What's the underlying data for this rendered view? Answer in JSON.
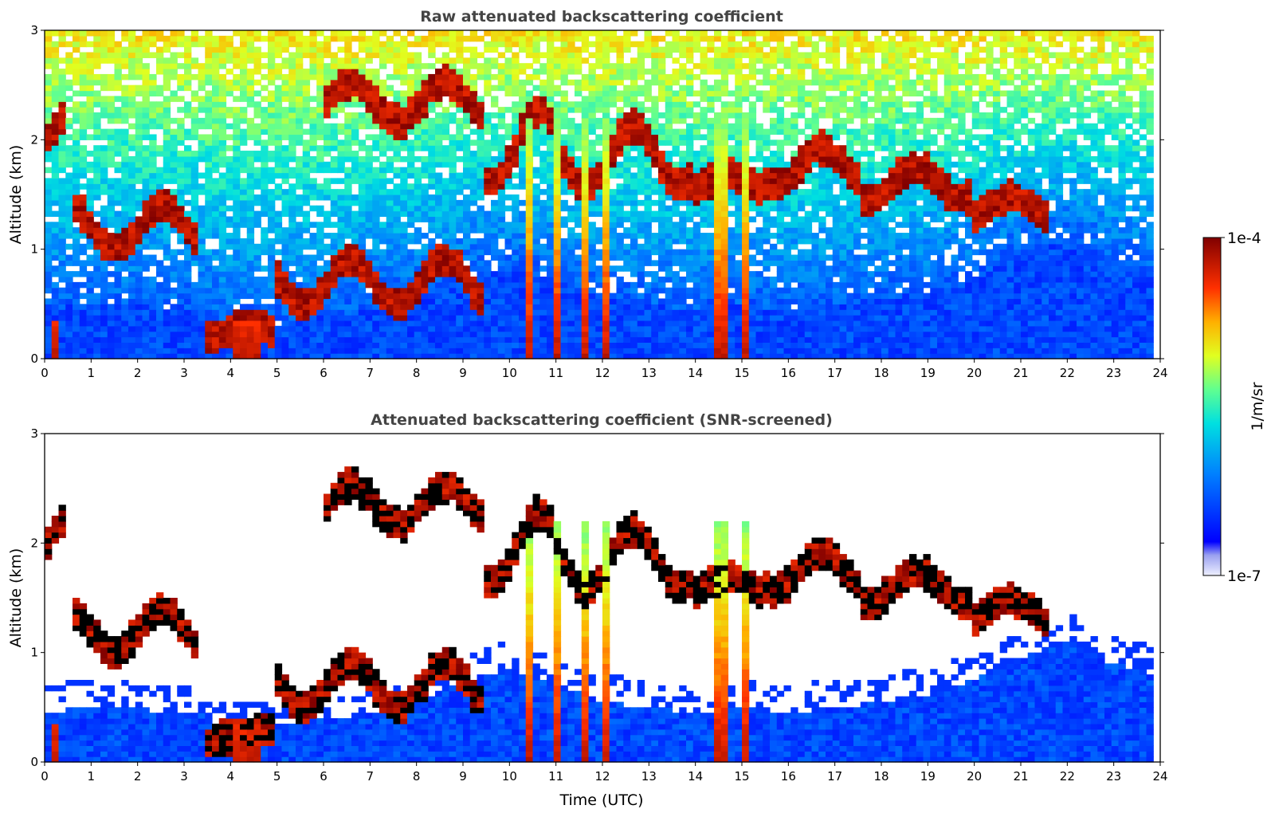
{
  "chart_data": [
    {
      "type": "heatmap",
      "title": "Raw attenuated backscattering coefficient",
      "xlabel": "",
      "ylabel": "Altitude (km)",
      "xlim": [
        0,
        24
      ],
      "ylim": [
        0,
        3
      ],
      "xticks": [
        "0",
        "1",
        "2",
        "3",
        "4",
        "5",
        "6",
        "7",
        "8",
        "9",
        "10",
        "11",
        "12",
        "13",
        "14",
        "15",
        "16",
        "17",
        "18",
        "19",
        "20",
        "21",
        "22",
        "23",
        "24"
      ],
      "yticks": [
        "0",
        "1",
        "2",
        "3"
      ],
      "grid": false,
      "screened": false
    },
    {
      "type": "heatmap",
      "title": "Attenuated backscattering coefficient (SNR-screened)",
      "xlabel": "Time (UTC)",
      "ylabel": "Altitude (km)",
      "xlim": [
        0,
        24
      ],
      "ylim": [
        0,
        3
      ],
      "xticks": [
        "0",
        "1",
        "2",
        "3",
        "4",
        "5",
        "6",
        "7",
        "8",
        "9",
        "10",
        "11",
        "12",
        "13",
        "14",
        "15",
        "16",
        "17",
        "18",
        "19",
        "20",
        "21",
        "22",
        "23",
        "24"
      ],
      "yticks": [
        "0",
        "1",
        "2",
        "3"
      ],
      "grid": false,
      "screened": true
    }
  ],
  "colorbar": {
    "label": "1/m/sr",
    "max_label": "1e-4",
    "min_label": "1e-7",
    "scale": "log",
    "colormap": "jet"
  },
  "features": {
    "boundary_layer": [
      [
        0,
        0.45
      ],
      [
        1,
        0.5
      ],
      [
        2,
        0.48
      ],
      [
        3.3,
        0.45
      ],
      [
        4,
        0.3
      ],
      [
        5,
        0.32
      ],
      [
        6,
        0.38
      ],
      [
        7,
        0.45
      ],
      [
        8,
        0.55
      ],
      [
        9,
        0.75
      ],
      [
        10,
        0.85
      ],
      [
        11,
        0.7
      ],
      [
        12,
        0.55
      ],
      [
        13,
        0.5
      ],
      [
        14,
        0.45
      ],
      [
        15,
        0.5
      ],
      [
        16,
        0.45
      ],
      [
        17,
        0.5
      ],
      [
        18,
        0.55
      ],
      [
        19,
        0.6
      ],
      [
        20,
        0.75
      ],
      [
        21,
        0.95
      ],
      [
        22,
        1.1
      ],
      [
        23,
        0.9
      ],
      [
        24,
        0.8
      ]
    ],
    "cloud_layers": [
      {
        "t0": 0.0,
        "t1": 0.5,
        "h0": 1.4,
        "h1": 2.5
      },
      {
        "t0": 0.6,
        "t1": 3.3,
        "h0": 0.8,
        "h1": 1.6
      },
      {
        "t0": 3.4,
        "t1": 4.9,
        "h0": 0.15,
        "h1": 0.35
      },
      {
        "t0": 4.9,
        "t1": 9.5,
        "h0": 0.3,
        "h1": 1.1
      },
      {
        "t0": 6.0,
        "t1": 9.5,
        "h0": 2.0,
        "h1": 2.7
      },
      {
        "t0": 9.5,
        "t1": 10.9,
        "h0": 1.3,
        "h1": 2.6
      },
      {
        "t0": 11.0,
        "t1": 14.0,
        "h0": 1.3,
        "h1": 2.4
      },
      {
        "t0": 14.0,
        "t1": 15.4,
        "h0": 1.4,
        "h1": 1.8
      },
      {
        "t0": 15.4,
        "t1": 17.5,
        "h0": 1.4,
        "h1": 2.1
      },
      {
        "t0": 17.5,
        "t1": 20.0,
        "h0": 1.3,
        "h1": 1.9
      },
      {
        "t0": 20.0,
        "t1": 21.6,
        "h0": 1.15,
        "h1": 1.6
      }
    ],
    "precip_columns": [
      {
        "t": 0.2,
        "w": 0.25
      },
      {
        "t": 4.4,
        "w": 0.6
      },
      {
        "t": 10.4,
        "w": 0.25
      },
      {
        "t": 11.0,
        "w": 0.2
      },
      {
        "t": 11.6,
        "w": 0.15
      },
      {
        "t": 12.1,
        "w": 0.1
      },
      {
        "t": 14.6,
        "w": 0.3
      },
      {
        "t": 15.1,
        "w": 0.2
      }
    ]
  }
}
